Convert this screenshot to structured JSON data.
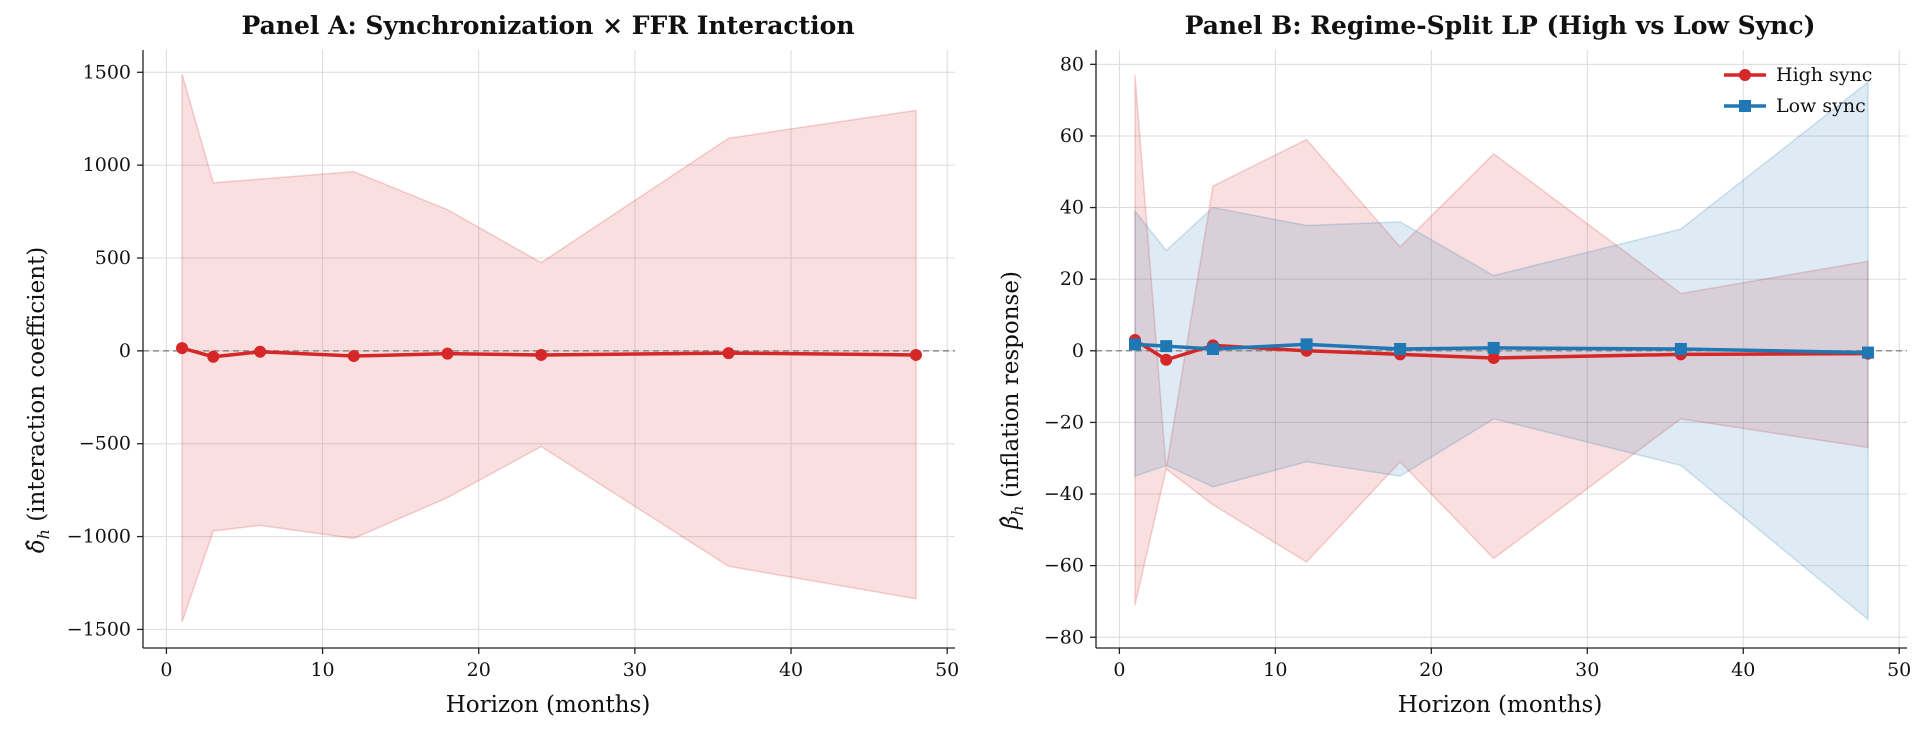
{
  "chart_data": [
    {
      "type": "line",
      "title": "Panel A: Synchronization × FFR Interaction",
      "xlabel": "Horizon (months)",
      "ylabel_main": "(interaction coefficient)",
      "ylabel_symbol": "δ̂",
      "ylabel_sub": "h",
      "xlim": [
        -1.5,
        50.5
      ],
      "ylim": [
        -1600,
        1620
      ],
      "xticks": [
        0,
        10,
        20,
        30,
        40,
        50
      ],
      "yticks": [
        -1500,
        -1000,
        -500,
        0,
        500,
        1000,
        1500
      ],
      "ytick_labels": [
        "−1500",
        "−1000",
        "−500",
        "0",
        "500",
        "1000",
        "1500"
      ],
      "grid": true,
      "zero_line": true,
      "series": [
        {
          "color": "#d62728",
          "marker": "circle",
          "x": [
            1,
            3,
            6,
            12,
            18,
            24,
            36,
            48
          ],
          "values": [
            15,
            -32,
            -5,
            -28,
            -15,
            -22,
            -12,
            -22
          ],
          "lower": [
            -1460,
            -970,
            -940,
            -1010,
            -790,
            -515,
            -1160,
            -1335
          ],
          "upper": [
            1490,
            905,
            925,
            965,
            760,
            475,
            1145,
            1295
          ]
        }
      ]
    },
    {
      "type": "line",
      "title": "Panel B: Regime-Split LP (High vs Low Sync)",
      "xlabel": "Horizon (months)",
      "ylabel_main": "(inflation response)",
      "ylabel_symbol": "β̂",
      "ylabel_sub": "h",
      "xlim": [
        -1.5,
        50.5
      ],
      "ylim": [
        -83,
        84
      ],
      "xticks": [
        0,
        10,
        20,
        30,
        40,
        50
      ],
      "yticks": [
        -80,
        -60,
        -40,
        -20,
        0,
        20,
        40,
        60,
        80
      ],
      "ytick_labels": [
        "−80",
        "−60",
        "−40",
        "−20",
        "0",
        "20",
        "40",
        "60",
        "80"
      ],
      "grid": true,
      "zero_line": true,
      "legend_position": "top-right",
      "series": [
        {
          "name": "High sync",
          "color": "#d62728",
          "marker": "circle",
          "x": [
            1,
            3,
            6,
            12,
            18,
            24,
            36,
            48
          ],
          "values": [
            3,
            -2.5,
            1.5,
            0,
            -1,
            -2,
            -1,
            -0.8
          ],
          "lower": [
            -71,
            -33,
            -43,
            -59,
            -31,
            -58,
            -19,
            -27
          ],
          "upper": [
            77,
            -33,
            46,
            59,
            29,
            55,
            16,
            25
          ]
        },
        {
          "name": "Low sync",
          "color": "#1f77b4",
          "marker": "square",
          "x": [
            1,
            3,
            6,
            12,
            18,
            24,
            36,
            48
          ],
          "values": [
            1.8,
            1.3,
            0.5,
            1.8,
            0.5,
            0.8,
            0.5,
            -0.5
          ],
          "lower": [
            -35,
            -32,
            -38,
            -31,
            -35,
            -19,
            -32,
            -75
          ],
          "upper": [
            39,
            28,
            40,
            35,
            36,
            21,
            34,
            75
          ]
        }
      ]
    }
  ]
}
